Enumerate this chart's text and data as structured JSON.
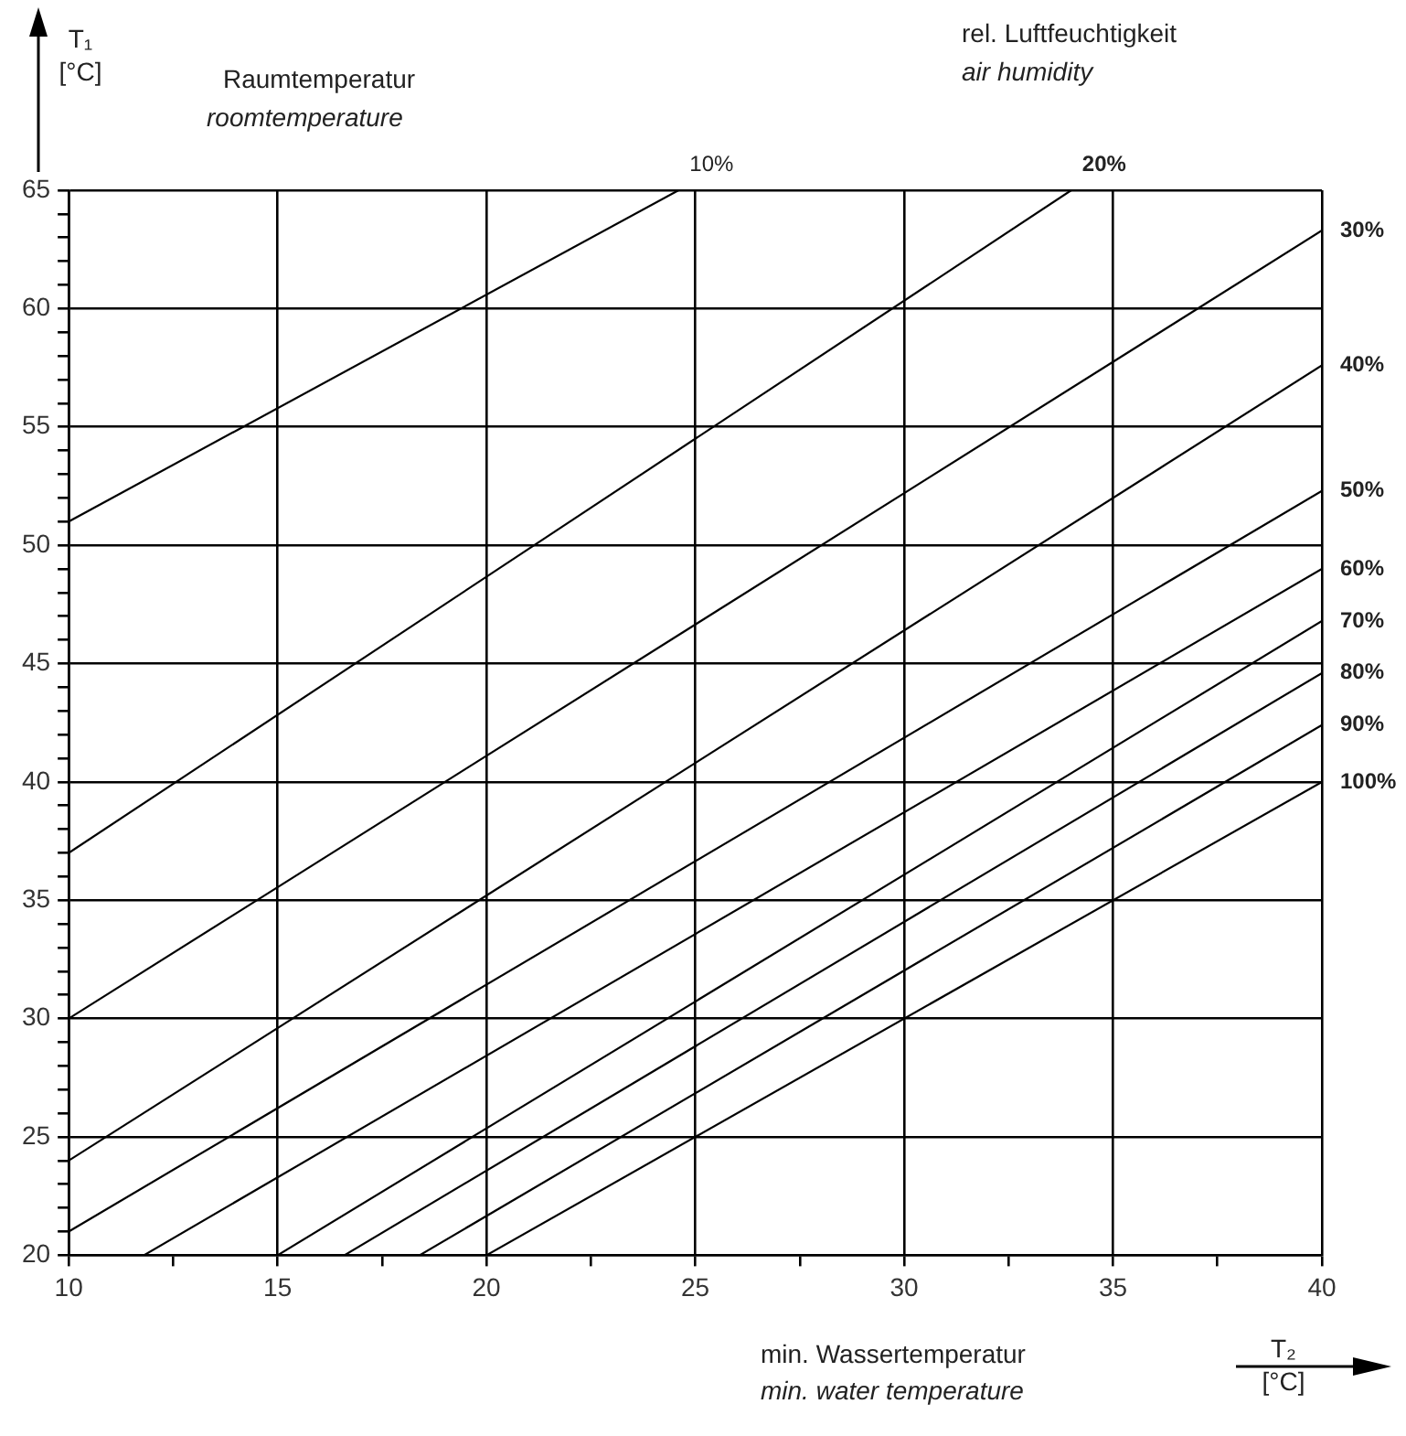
{
  "chart_data": {
    "type": "line",
    "xlabel": "T₂ [°C]",
    "ylabel": "T₁ [°C]",
    "legend_title": "rel. Luftfeuchtigkeit",
    "annotations": [
      "air humidity",
      "Raumtemperatur",
      "roomtemperature",
      "min. Wassertemperatur",
      "min. water temperature"
    ],
    "xlim": [
      10,
      40
    ],
    "ylim": [
      20,
      65
    ],
    "xticks": [
      10,
      {
        "value": 12.5,
        "label": null
      },
      15,
      {
        "value": 17.5,
        "label": null
      },
      20,
      {
        "value": 22.5,
        "label": null
      },
      25,
      {
        "value": 27.5,
        "label": null
      },
      30,
      {
        "value": 32.5,
        "label": null
      },
      35,
      {
        "value": 37.5,
        "label": null
      },
      40
    ],
    "yticks": [
      20,
      {
        "value": 21,
        "label": null
      },
      {
        "value": 22,
        "label": null
      },
      {
        "value": 23,
        "label": null
      },
      {
        "value": 24,
        "label": null
      },
      25,
      {
        "value": 26,
        "label": null
      },
      {
        "value": 27,
        "label": null
      },
      {
        "value": 28,
        "label": null
      },
      {
        "value": 29,
        "label": null
      },
      30,
      {
        "value": 31,
        "label": null
      },
      {
        "value": 32,
        "label": null
      },
      {
        "value": 33,
        "label": null
      },
      {
        "value": 34,
        "label": null
      },
      35,
      {
        "value": 36,
        "label": null
      },
      {
        "value": 37,
        "label": null
      },
      {
        "value": 38,
        "label": null
      },
      {
        "value": 39,
        "label": null
      },
      40,
      {
        "value": 41,
        "label": null
      },
      {
        "value": 42,
        "label": null
      },
      {
        "value": 43,
        "label": null
      },
      {
        "value": 44,
        "label": null
      },
      45,
      {
        "value": 46,
        "label": null
      },
      {
        "value": 47,
        "label": null
      },
      {
        "value": 48,
        "label": null
      },
      {
        "value": 49,
        "label": null
      },
      50,
      {
        "value": 51,
        "label": null
      },
      {
        "value": 52,
        "label": null
      },
      {
        "value": 53,
        "label": null
      },
      {
        "value": 54,
        "label": null
      },
      55,
      {
        "value": 56,
        "label": null
      },
      {
        "value": 57,
        "label": null
      },
      {
        "value": 58,
        "label": null
      },
      {
        "value": 59,
        "label": null
      },
      60,
      {
        "value": 61,
        "label": null
      },
      {
        "value": 62,
        "label": null
      },
      {
        "value": 63,
        "label": null
      },
      {
        "value": 64,
        "label": null
      },
      65
    ],
    "grid": true,
    "legend": false,
    "marker": "none",
    "line_style": "solid",
    "series": [
      {
        "name": "10%",
        "color": "#000000",
        "x": [
          10,
          24.6
        ],
        "values": [
          51,
          65
        ]
      },
      {
        "name": "20%",
        "color": "#000000",
        "x": [
          10,
          34.0
        ],
        "values": [
          37,
          65
        ]
      },
      {
        "name": "30%",
        "color": "#000000",
        "x": [
          10,
          40
        ],
        "values": [
          30,
          63.3
        ]
      },
      {
        "name": "40%",
        "color": "#000000",
        "x": [
          10,
          40
        ],
        "values": [
          24,
          57.6
        ]
      },
      {
        "name": "50%",
        "color": "#000000",
        "x": [
          10,
          40
        ],
        "values": [
          21,
          52.3
        ]
      },
      {
        "name": "60%",
        "color": "#000000",
        "x": [
          11.8,
          40
        ],
        "values": [
          20,
          49.0
        ]
      },
      {
        "name": "70%",
        "color": "#000000",
        "x": [
          15,
          40
        ],
        "values": [
          20,
          46.8
        ]
      },
      {
        "name": "80%",
        "color": "#000000",
        "x": [
          16.6,
          40
        ],
        "values": [
          20,
          44.6
        ]
      },
      {
        "name": "90%",
        "color": "#000000",
        "x": [
          18.4,
          40
        ],
        "values": [
          20,
          42.4
        ]
      },
      {
        "name": "100%",
        "color": "#000000",
        "x": [
          20,
          40
        ],
        "values": [
          20,
          40
        ]
      }
    ]
  }
}
